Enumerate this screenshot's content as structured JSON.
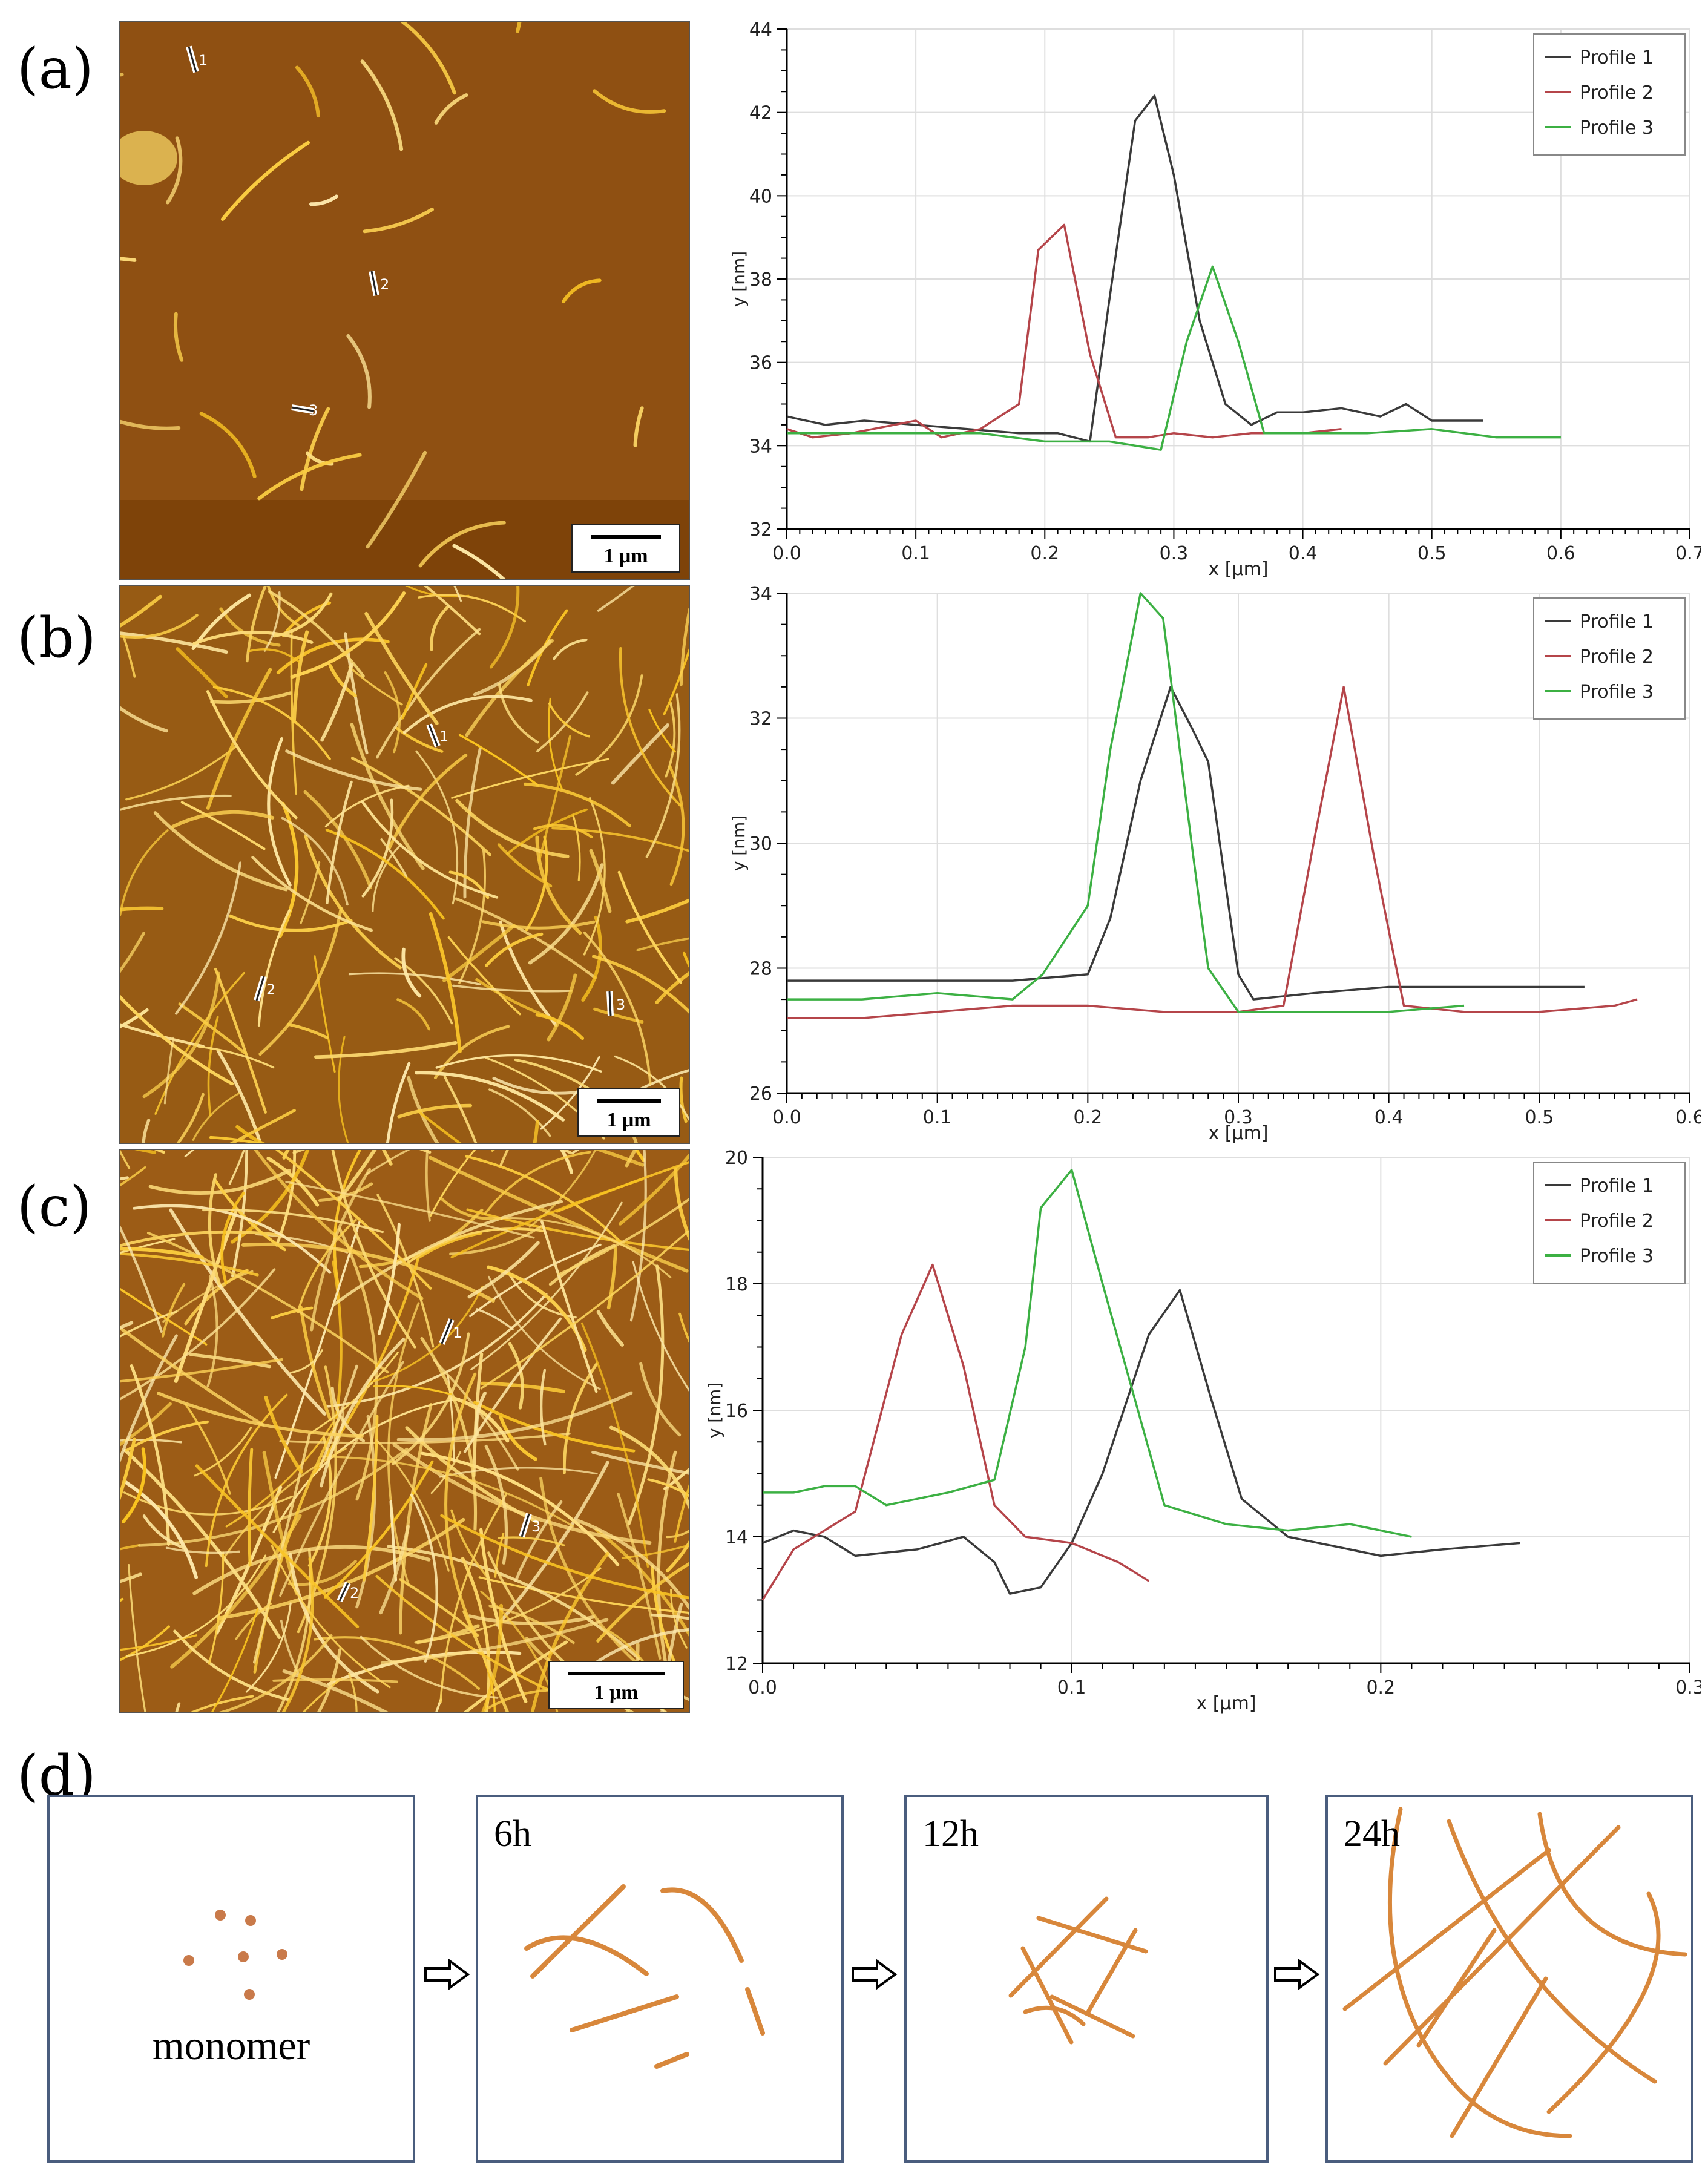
{
  "panel_labels": [
    "(a)",
    "(b)",
    "(c)",
    "(d)"
  ],
  "afm_images": [
    {
      "scale_label": "1 μm",
      "profile_markers": [
        "1",
        "2",
        "3"
      ],
      "fibril_count": 24,
      "seed": 3
    },
    {
      "scale_label": "1 μm",
      "profile_markers": [
        "1",
        "2",
        "3"
      ],
      "fibril_count": 170,
      "seed": 11
    },
    {
      "scale_label": "1 μm",
      "profile_markers": [
        "1",
        "2",
        "3"
      ],
      "fibril_count": 260,
      "seed": 29
    }
  ],
  "colors": {
    "profile1": "#3a3a3a",
    "profile2": "#b5454a",
    "profile3": "#3cb043",
    "fibril": "#d8873b",
    "box_border": "#4a5d7e"
  },
  "chart_data": [
    {
      "type": "line",
      "xlabel": "x [μm]",
      "ylabel": "y [nm]",
      "xlim": [
        0,
        0.7
      ],
      "ylim": [
        32,
        44
      ],
      "xticks": [
        0.0,
        0.1,
        0.2,
        0.3,
        0.4,
        0.5,
        0.6,
        0.7
      ],
      "yticks": [
        32,
        34,
        36,
        38,
        40,
        42,
        44
      ],
      "legend": "top-right",
      "series": [
        {
          "name": "Profile 1",
          "color": "#3a3a3a",
          "x": [
            0.0,
            0.03,
            0.06,
            0.1,
            0.14,
            0.18,
            0.21,
            0.235,
            0.25,
            0.27,
            0.285,
            0.3,
            0.32,
            0.34,
            0.36,
            0.38,
            0.4,
            0.43,
            0.46,
            0.48,
            0.5,
            0.54
          ],
          "y": [
            34.7,
            34.5,
            34.6,
            34.5,
            34.4,
            34.3,
            34.3,
            34.1,
            37.5,
            41.8,
            42.4,
            40.5,
            37.0,
            35.0,
            34.5,
            34.8,
            34.8,
            34.9,
            34.7,
            35.0,
            34.6,
            34.6
          ]
        },
        {
          "name": "Profile 2",
          "color": "#b5454a",
          "x": [
            0.0,
            0.02,
            0.05,
            0.1,
            0.12,
            0.15,
            0.18,
            0.195,
            0.215,
            0.235,
            0.255,
            0.28,
            0.3,
            0.33,
            0.36,
            0.4,
            0.43
          ],
          "y": [
            34.4,
            34.2,
            34.3,
            34.6,
            34.2,
            34.4,
            35.0,
            38.7,
            39.3,
            36.2,
            34.2,
            34.2,
            34.3,
            34.2,
            34.3,
            34.3,
            34.4
          ]
        },
        {
          "name": "Profile 3",
          "color": "#3cb043",
          "x": [
            0.0,
            0.05,
            0.1,
            0.15,
            0.2,
            0.25,
            0.29,
            0.31,
            0.33,
            0.35,
            0.37,
            0.4,
            0.45,
            0.5,
            0.55,
            0.6
          ],
          "y": [
            34.3,
            34.3,
            34.3,
            34.3,
            34.1,
            34.1,
            33.9,
            36.5,
            38.3,
            36.5,
            34.3,
            34.3,
            34.3,
            34.4,
            34.2,
            34.2
          ]
        }
      ]
    },
    {
      "type": "line",
      "xlabel": "x [μm]",
      "ylabel": "y [nm]",
      "xlim": [
        0,
        0.6
      ],
      "ylim": [
        26,
        34
      ],
      "xticks": [
        0.0,
        0.1,
        0.2,
        0.3,
        0.4,
        0.5,
        0.6
      ],
      "yticks": [
        26,
        28,
        30,
        32,
        34
      ],
      "legend": "top-right",
      "series": [
        {
          "name": "Profile 1",
          "color": "#3a3a3a",
          "x": [
            0.0,
            0.05,
            0.1,
            0.15,
            0.2,
            0.215,
            0.235,
            0.255,
            0.27,
            0.28,
            0.3,
            0.31,
            0.35,
            0.4,
            0.45,
            0.5,
            0.53
          ],
          "y": [
            27.8,
            27.8,
            27.8,
            27.8,
            27.9,
            28.8,
            31.0,
            32.5,
            31.8,
            31.3,
            27.9,
            27.5,
            27.6,
            27.7,
            27.7,
            27.7,
            27.7
          ]
        },
        {
          "name": "Profile 2",
          "color": "#b5454a",
          "x": [
            0.0,
            0.05,
            0.1,
            0.15,
            0.2,
            0.25,
            0.3,
            0.33,
            0.35,
            0.37,
            0.39,
            0.41,
            0.45,
            0.5,
            0.55,
            0.565
          ],
          "y": [
            27.2,
            27.2,
            27.3,
            27.4,
            27.4,
            27.3,
            27.3,
            27.4,
            30.0,
            32.5,
            29.8,
            27.4,
            27.3,
            27.3,
            27.4,
            27.5
          ]
        },
        {
          "name": "Profile 3",
          "color": "#3cb043",
          "x": [
            0.0,
            0.05,
            0.1,
            0.15,
            0.17,
            0.2,
            0.215,
            0.235,
            0.25,
            0.27,
            0.28,
            0.3,
            0.35,
            0.4,
            0.45
          ],
          "y": [
            27.5,
            27.5,
            27.6,
            27.5,
            27.9,
            29.0,
            31.5,
            34.0,
            33.6,
            29.8,
            28.0,
            27.3,
            27.3,
            27.3,
            27.4
          ]
        }
      ]
    },
    {
      "type": "line",
      "xlabel": "x [μm]",
      "ylabel": "y [nm]",
      "xlim": [
        0,
        0.3
      ],
      "ylim": [
        12,
        20
      ],
      "xticks": [
        0.0,
        0.1,
        0.2,
        0.3
      ],
      "yticks": [
        12,
        14,
        16,
        18,
        20
      ],
      "legend": "top-right",
      "series": [
        {
          "name": "Profile 1",
          "color": "#3a3a3a",
          "x": [
            0.0,
            0.01,
            0.02,
            0.03,
            0.05,
            0.065,
            0.075,
            0.08,
            0.09,
            0.1,
            0.11,
            0.125,
            0.135,
            0.145,
            0.155,
            0.17,
            0.2,
            0.22,
            0.245
          ],
          "y": [
            13.9,
            14.1,
            14.0,
            13.7,
            13.8,
            14.0,
            13.6,
            13.1,
            13.2,
            13.9,
            15.0,
            17.2,
            17.9,
            16.2,
            14.6,
            14.0,
            13.7,
            13.8,
            13.9
          ]
        },
        {
          "name": "Profile 2",
          "color": "#b5454a",
          "x": [
            0.0,
            0.01,
            0.02,
            0.03,
            0.045,
            0.055,
            0.065,
            0.075,
            0.085,
            0.1,
            0.115,
            0.125
          ],
          "y": [
            13.0,
            13.8,
            14.1,
            14.4,
            17.2,
            18.3,
            16.7,
            14.5,
            14.0,
            13.9,
            13.6,
            13.3
          ]
        },
        {
          "name": "Profile 3",
          "color": "#3cb043",
          "x": [
            0.0,
            0.01,
            0.02,
            0.03,
            0.04,
            0.06,
            0.075,
            0.085,
            0.09,
            0.1,
            0.11,
            0.13,
            0.15,
            0.17,
            0.19,
            0.21
          ],
          "y": [
            14.7,
            14.7,
            14.8,
            14.8,
            14.5,
            14.7,
            14.9,
            17.0,
            19.2,
            19.8,
            18.0,
            14.5,
            14.2,
            14.1,
            14.2,
            14.0
          ]
        }
      ]
    }
  ],
  "diagram": {
    "stages": [
      {
        "label": "",
        "caption": "monomer"
      },
      {
        "label": "6h",
        "caption": ""
      },
      {
        "label": "12h",
        "caption": ""
      },
      {
        "label": "24h",
        "caption": ""
      }
    ],
    "arrow_symbol": "⇨"
  }
}
